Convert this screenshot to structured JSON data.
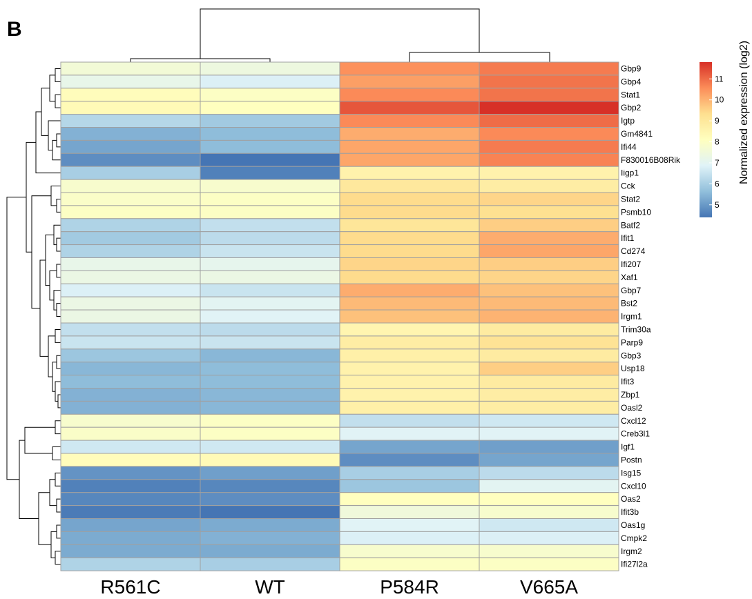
{
  "panel_label": "B",
  "chart_data": {
    "type": "heatmap",
    "title": "",
    "columns": [
      "R561C",
      "WT",
      "P584R",
      "V665A"
    ],
    "rows": [
      "Gbp9",
      "Gbp4",
      "Stat1",
      "Gbp2",
      "Igtp",
      "Gm4841",
      "Ifi44",
      "F830016B08Rik",
      "Iigp1",
      "Cck",
      "Stat2",
      "Psmb10",
      "Batf2",
      "Ifit1",
      "Cd274",
      "Ifi207",
      "Xaf1",
      "Gbp7",
      "Bst2",
      "Irgm1",
      "Trim30a",
      "Parp9",
      "Gbp3",
      "Usp18",
      "Ifit3",
      "Zbp1",
      "Oasl2",
      "Cxcl12",
      "Creb3l1",
      "Igf1",
      "Postn",
      "Isg15",
      "Cxcl10",
      "Oas2",
      "Ifit3b",
      "Oas1g",
      "Cmpk2",
      "Irgm2",
      "Ifi27l2a"
    ],
    "values": [
      [
        7.6,
        7.4,
        10.5,
        10.8
      ],
      [
        7.2,
        6.8,
        10.3,
        10.9
      ],
      [
        8.2,
        8.0,
        10.6,
        10.9
      ],
      [
        8.3,
        8.1,
        11.3,
        11.8
      ],
      [
        6.2,
        5.9,
        10.6,
        11.0
      ],
      [
        5.4,
        5.6,
        10.1,
        10.6
      ],
      [
        5.2,
        5.6,
        10.2,
        10.8
      ],
      [
        4.8,
        4.4,
        10.2,
        10.7
      ],
      [
        6.0,
        4.6,
        8.6,
        8.6
      ],
      [
        7.8,
        7.8,
        9.0,
        8.8
      ],
      [
        7.9,
        8.0,
        9.4,
        9.5
      ],
      [
        8.0,
        8.0,
        9.4,
        9.3
      ],
      [
        6.1,
        6.4,
        9.1,
        9.6
      ],
      [
        5.9,
        6.3,
        9.4,
        10.1
      ],
      [
        6.1,
        6.5,
        9.4,
        10.2
      ],
      [
        7.2,
        7.1,
        9.5,
        9.6
      ],
      [
        7.3,
        7.3,
        9.4,
        9.5
      ],
      [
        6.8,
        6.5,
        10.1,
        9.8
      ],
      [
        7.3,
        7.0,
        9.9,
        9.9
      ],
      [
        7.3,
        6.9,
        9.8,
        10.0
      ],
      [
        6.4,
        6.3,
        8.5,
        8.9
      ],
      [
        6.5,
        6.5,
        8.8,
        9.2
      ],
      [
        5.8,
        5.5,
        8.7,
        8.9
      ],
      [
        5.5,
        5.6,
        8.6,
        9.6
      ],
      [
        5.6,
        5.6,
        8.6,
        8.9
      ],
      [
        5.4,
        5.5,
        8.6,
        8.8
      ],
      [
        5.4,
        5.5,
        8.7,
        8.8
      ],
      [
        7.8,
        8.0,
        6.4,
        6.6
      ],
      [
        7.9,
        8.0,
        6.9,
        6.9
      ],
      [
        6.6,
        6.6,
        5.2,
        5.1
      ],
      [
        8.2,
        8.3,
        4.8,
        5.2
      ],
      [
        4.9,
        5.1,
        6.0,
        6.3
      ],
      [
        4.6,
        4.7,
        5.8,
        7.0
      ],
      [
        4.7,
        4.8,
        8.1,
        8.1
      ],
      [
        4.5,
        4.4,
        7.5,
        7.8
      ],
      [
        5.2,
        5.3,
        6.9,
        6.6
      ],
      [
        5.3,
        5.4,
        6.8,
        6.8
      ],
      [
        5.3,
        5.3,
        7.8,
        7.8
      ],
      [
        6.1,
        6.0,
        8.0,
        8.0
      ]
    ],
    "scale": {
      "min": 4.4,
      "max": 11.8
    },
    "legend": {
      "title": "Normalized expression (log2)",
      "ticks": [
        5,
        6,
        7,
        8,
        9,
        10,
        11
      ],
      "placement": "top-right"
    },
    "colors": [
      "#4575b4",
      "#91bfdb",
      "#e0f3f8",
      "#ffffbf",
      "#fee090",
      "#fc8d59",
      "#d73027"
    ],
    "cell_border_color": "#a0a0a0"
  }
}
